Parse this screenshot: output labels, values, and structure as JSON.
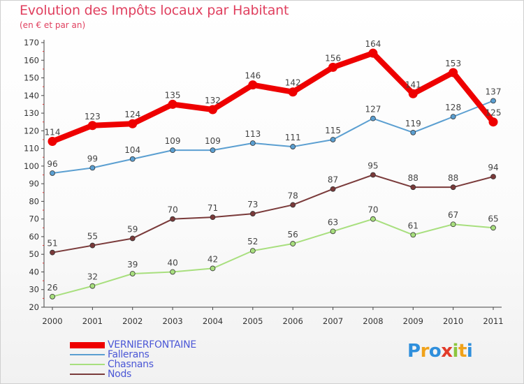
{
  "header": {
    "title": "Evolution des Impôts locaux par Habitant",
    "subtitle": "(en € et par an)"
  },
  "chart_data": {
    "type": "line",
    "title": "Evolution des Impôts locaux par Habitant",
    "subtitle": "(en € et par an)",
    "xlabel": "",
    "ylabel": "",
    "x": [
      "2000",
      "2001",
      "2002",
      "2003",
      "2004",
      "2005",
      "2006",
      "2007",
      "2008",
      "2009",
      "2010",
      "2011"
    ],
    "ylim": [
      20,
      170
    ],
    "yticks": [
      "20",
      "30",
      "40",
      "50",
      "60",
      "70",
      "80",
      "90",
      "100",
      "110",
      "120",
      "130",
      "140",
      "150",
      "160",
      "170"
    ],
    "grid": false,
    "legend_position": "bottom-left",
    "series": [
      {
        "name": "VERNIERFONTAINE",
        "color": "#ee0000",
        "emphasis": true,
        "values": [
          114,
          123,
          124,
          135,
          132,
          146,
          142,
          156,
          164,
          141,
          153,
          125
        ]
      },
      {
        "name": "Fallerans",
        "color": "#5b9fd1",
        "emphasis": false,
        "values": [
          96,
          99,
          104,
          109,
          109,
          113,
          111,
          115,
          127,
          119,
          128,
          137
        ]
      },
      {
        "name": "Chasnans",
        "color": "#a8df7e",
        "emphasis": false,
        "values": [
          26,
          32,
          39,
          40,
          42,
          52,
          56,
          63,
          70,
          61,
          67,
          65
        ]
      },
      {
        "name": "Nods",
        "color": "#7a3a3a",
        "emphasis": false,
        "values": [
          51,
          55,
          59,
          70,
          71,
          73,
          78,
          87,
          95,
          88,
          88,
          94
        ]
      }
    ]
  },
  "legend": {
    "items": [
      "VERNIERFONTAINE",
      "Fallerans",
      "Chasnans",
      "Nods"
    ]
  },
  "logo": {
    "letters": [
      "P",
      "r",
      "o",
      "x",
      "i",
      "t",
      "i"
    ],
    "colors": [
      "#2f8fdc",
      "#f0a21a",
      "#2f8fdc",
      "#e23b2a",
      "#8cc63f",
      "#f0a21a",
      "#2f8fdc"
    ]
  }
}
